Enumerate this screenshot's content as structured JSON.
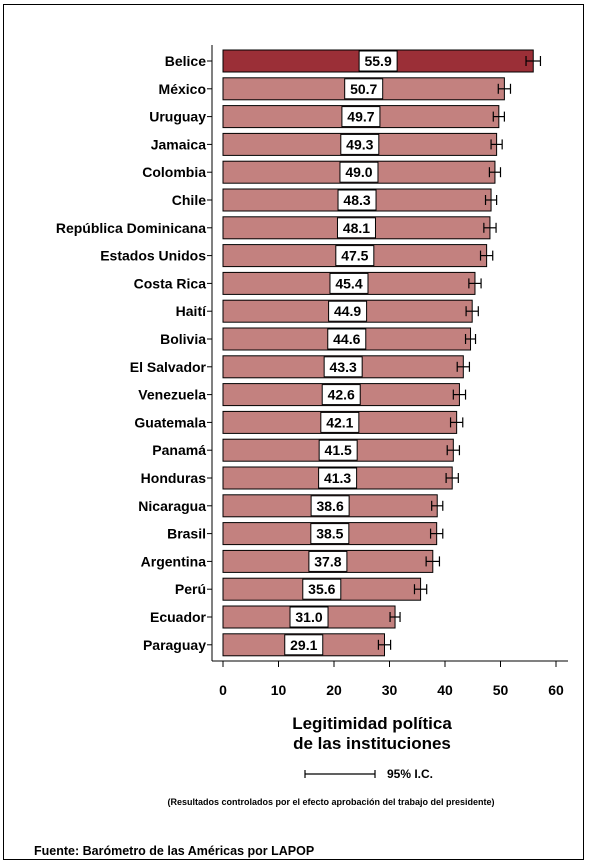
{
  "chart_data": {
    "type": "bar",
    "orientation": "horizontal",
    "categories": [
      "Belice",
      "México",
      "Uruguay",
      "Jamaica",
      "Colombia",
      "Chile",
      "República Dominicana",
      "Estados Unidos",
      "Costa Rica",
      "Haití",
      "Bolivia",
      "El Salvador",
      "Venezuela",
      "Guatemala",
      "Panamá",
      "Honduras",
      "Nicaragua",
      "Brasil",
      "Argentina",
      "Perú",
      "Ecuador",
      "Paraguay"
    ],
    "values": [
      55.9,
      50.7,
      49.7,
      49.3,
      49.0,
      48.3,
      48.1,
      47.5,
      45.4,
      44.9,
      44.6,
      43.3,
      42.6,
      42.1,
      41.5,
      41.3,
      38.6,
      38.5,
      37.8,
      35.6,
      31.0,
      29.1
    ],
    "value_labels": [
      "55.9",
      "50.7",
      "49.7",
      "49.3",
      "49.0",
      "48.3",
      "48.1",
      "47.5",
      "45.4",
      "44.9",
      "44.6",
      "43.3",
      "42.6",
      "42.1",
      "41.5",
      "41.3",
      "38.6",
      "38.5",
      "37.8",
      "35.6",
      "31.0",
      "29.1"
    ],
    "ci_low": [
      54.6,
      49.6,
      48.7,
      48.3,
      48.0,
      47.3,
      47.0,
      46.4,
      44.3,
      43.8,
      43.7,
      42.2,
      41.5,
      41.0,
      40.4,
      40.2,
      37.6,
      37.4,
      36.6,
      34.5,
      30.1,
      28.0
    ],
    "ci_high": [
      57.2,
      51.8,
      50.7,
      50.3,
      50.0,
      49.3,
      49.2,
      48.6,
      46.5,
      46.0,
      45.5,
      44.4,
      43.7,
      43.2,
      42.6,
      42.4,
      39.6,
      39.6,
      39.0,
      36.7,
      31.9,
      30.2
    ],
    "highlight_index": 0,
    "xlim": [
      0,
      60
    ],
    "xticks": [
      "0",
      "10",
      "20",
      "30",
      "40",
      "50",
      "60"
    ],
    "xlabel_line1": "Legitimidad política",
    "xlabel_line2": "de las instituciones",
    "legend_label": "95% I.C.",
    "note": "(Resultados controlados por el efecto aprobación del trabajo del presidente)",
    "source": "Fuente: Barómetro de las Américas por LAPOP",
    "colors": {
      "bar": "#c3817f",
      "highlight": "#9b2f37",
      "label_box": "#ffffff",
      "edge": "#000000"
    }
  }
}
